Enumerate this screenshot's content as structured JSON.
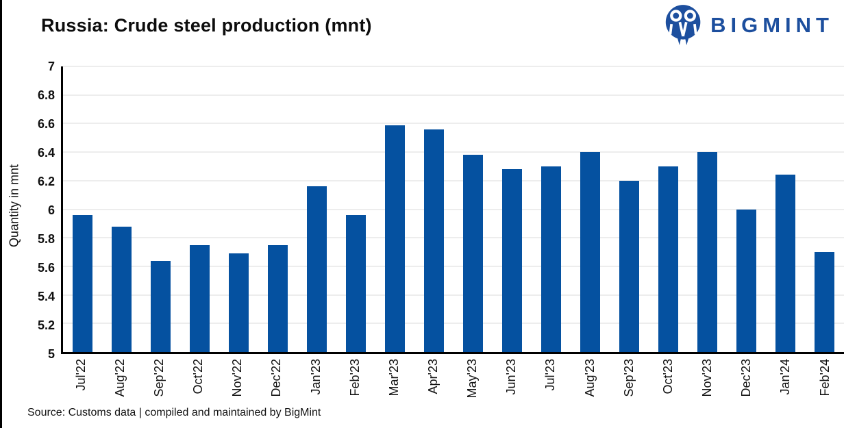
{
  "page": {
    "title": "Russia: Crude steel production (mnt)",
    "source": "Source: Customs data | compiled and maintained by BigMint"
  },
  "logo": {
    "text": "BIGMINT",
    "color": "#1d4f9e"
  },
  "colors": {
    "bar": "#0551a0",
    "grid": "#ededed",
    "axis": "#000000",
    "text": "#111111"
  },
  "chart_data": {
    "type": "bar",
    "title": "Russia: Crude steel production (mnt)",
    "xlabel": "",
    "ylabel": "Quantity in mnt",
    "ylim": [
      5,
      7
    ],
    "ytick_step": 0.2,
    "grid": true,
    "legend": false,
    "bar_color": "#0551a0",
    "categories": [
      "Jul'22",
      "Aug'22",
      "Sep'22",
      "Oct'22",
      "Nov'22",
      "Dec'22",
      "Jan'23",
      "Feb'23",
      "Mar'23",
      "Apr'23",
      "May'23",
      "Jun'23",
      "Jul'23",
      "Aug'23",
      "Sep'23",
      "Oct'23",
      "Nov'23",
      "Dec'23",
      "Jan'24",
      "Feb'24"
    ],
    "values": [
      5.96,
      5.88,
      5.64,
      5.75,
      5.69,
      5.75,
      6.16,
      5.96,
      6.59,
      6.56,
      6.38,
      6.28,
      6.3,
      6.4,
      6.2,
      6.3,
      6.4,
      6.0,
      6.24,
      5.7
    ]
  }
}
